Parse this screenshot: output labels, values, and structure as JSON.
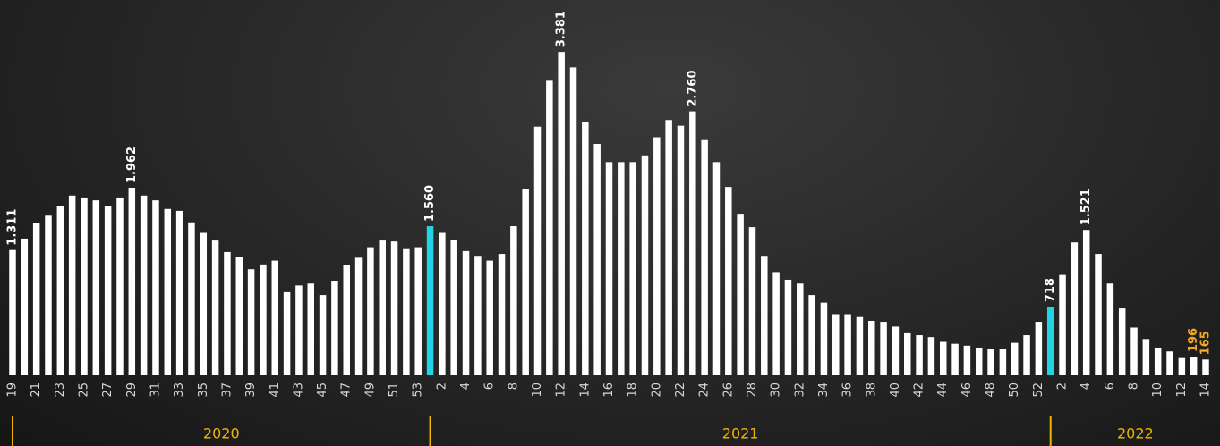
{
  "chart_data": {
    "type": "bar",
    "ylim": [
      0,
      3700
    ],
    "groups": [
      {
        "label": "2020",
        "categories": [
          "19",
          null,
          "21",
          null,
          "23",
          null,
          "25",
          null,
          "27",
          null,
          "29",
          null,
          "31",
          null,
          "33",
          null,
          "35",
          null,
          "37",
          null,
          "39",
          null,
          "41",
          null,
          "43",
          null,
          "45",
          null,
          "47",
          null,
          "49",
          null,
          "51",
          null,
          "53"
        ],
        "values": [
          1311,
          1430,
          1590,
          1670,
          1770,
          1880,
          1860,
          1830,
          1770,
          1860,
          1962,
          1880,
          1830,
          1740,
          1720,
          1600,
          1490,
          1410,
          1290,
          1240,
          1110,
          1160,
          1200,
          870,
          940,
          960,
          840,
          990,
          1150,
          1230,
          1340,
          1410,
          1400,
          1320,
          1340
        ],
        "value_labels": [
          "1.311",
          null,
          null,
          null,
          null,
          null,
          null,
          null,
          null,
          null,
          "1.962",
          null,
          null,
          null,
          null,
          null,
          null,
          null,
          null,
          null,
          null,
          null,
          null,
          null,
          null,
          null,
          null,
          null,
          null,
          null,
          null,
          null,
          null,
          null,
          null
        ],
        "colors": [
          "#ffffff",
          "#ffffff",
          "#ffffff",
          "#ffffff",
          "#ffffff",
          "#ffffff",
          "#ffffff",
          "#ffffff",
          "#ffffff",
          "#ffffff",
          "#ffffff",
          "#ffffff",
          "#ffffff",
          "#ffffff",
          "#ffffff",
          "#ffffff",
          "#ffffff",
          "#ffffff",
          "#ffffff",
          "#ffffff",
          "#ffffff",
          "#ffffff",
          "#ffffff",
          "#ffffff",
          "#ffffff",
          "#ffffff",
          "#ffffff",
          "#ffffff",
          "#ffffff",
          "#ffffff",
          "#ffffff",
          "#ffffff",
          "#ffffff",
          "#ffffff",
          "#ffffff"
        ],
        "value_label_colors": [
          "#ffffff",
          null,
          null,
          null,
          null,
          null,
          null,
          null,
          null,
          null,
          "#ffffff",
          null,
          null,
          null,
          null,
          null,
          null,
          null,
          null,
          null,
          null,
          null,
          null,
          null,
          null,
          null,
          null,
          null,
          null,
          null,
          null,
          null,
          null,
          null,
          null
        ]
      },
      {
        "label": "2021",
        "categories": [
          null,
          "2",
          null,
          "4",
          null,
          "6",
          null,
          "8",
          null,
          "10",
          null,
          "12",
          null,
          "14",
          null,
          "16",
          null,
          "18",
          null,
          "20",
          null,
          "22",
          null,
          "24",
          null,
          "26",
          null,
          "28",
          null,
          "30",
          null,
          "32",
          null,
          "34",
          null,
          "36",
          null,
          "38",
          null,
          "40",
          null,
          "42",
          null,
          "44",
          null,
          "46",
          null,
          "48",
          null,
          "50",
          null,
          "52"
        ],
        "values": [
          1560,
          1490,
          1420,
          1300,
          1250,
          1200,
          1270,
          1560,
          1950,
          2600,
          3080,
          3381,
          3220,
          2650,
          2420,
          2230,
          2230,
          2230,
          2300,
          2490,
          2670,
          2610,
          2760,
          2460,
          2230,
          1970,
          1690,
          1550,
          1250,
          1080,
          1000,
          960,
          840,
          760,
          640,
          640,
          610,
          570,
          560,
          510,
          440,
          420,
          400,
          350,
          330,
          310,
          290,
          280,
          280,
          340,
          420,
          560
        ],
        "value_labels": [
          "1.560",
          null,
          null,
          null,
          null,
          null,
          null,
          null,
          null,
          null,
          null,
          "3.381",
          null,
          null,
          null,
          null,
          null,
          null,
          null,
          null,
          null,
          null,
          "2.760",
          null,
          null,
          null,
          null,
          null,
          null,
          null,
          null,
          null,
          null,
          null,
          null,
          null,
          null,
          null,
          null,
          null,
          null,
          null,
          null,
          null,
          null,
          null,
          null,
          null,
          null,
          null,
          null,
          null
        ],
        "colors": [
          "#22d3e6",
          "#ffffff",
          "#ffffff",
          "#ffffff",
          "#ffffff",
          "#ffffff",
          "#ffffff",
          "#ffffff",
          "#ffffff",
          "#ffffff",
          "#ffffff",
          "#ffffff",
          "#ffffff",
          "#ffffff",
          "#ffffff",
          "#ffffff",
          "#ffffff",
          "#ffffff",
          "#ffffff",
          "#ffffff",
          "#ffffff",
          "#ffffff",
          "#ffffff",
          "#ffffff",
          "#ffffff",
          "#ffffff",
          "#ffffff",
          "#ffffff",
          "#ffffff",
          "#ffffff",
          "#ffffff",
          "#ffffff",
          "#ffffff",
          "#ffffff",
          "#ffffff",
          "#ffffff",
          "#ffffff",
          "#ffffff",
          "#ffffff",
          "#ffffff",
          "#ffffff",
          "#ffffff",
          "#ffffff",
          "#ffffff",
          "#ffffff",
          "#ffffff",
          "#ffffff",
          "#ffffff",
          "#ffffff",
          "#ffffff",
          "#ffffff",
          "#ffffff"
        ],
        "value_label_colors": [
          "#ffffff",
          null,
          null,
          null,
          null,
          null,
          null,
          null,
          null,
          null,
          null,
          "#ffffff",
          null,
          null,
          null,
          null,
          null,
          null,
          null,
          null,
          null,
          null,
          "#ffffff",
          null,
          null,
          null,
          null,
          null,
          null,
          null,
          null,
          null,
          null,
          null,
          null,
          null,
          null,
          null,
          null,
          null,
          null,
          null,
          null,
          null,
          null,
          null,
          null,
          null,
          null,
          null,
          null,
          null
        ]
      },
      {
        "label": "2022",
        "categories": [
          null,
          "2",
          null,
          "4",
          null,
          "6",
          null,
          "8",
          null,
          "10",
          null,
          "12",
          null,
          "14"
        ],
        "values": [
          718,
          1050,
          1390,
          1521,
          1270,
          960,
          700,
          500,
          380,
          290,
          250,
          190,
          196,
          165
        ],
        "value_labels": [
          "718",
          null,
          null,
          "1.521",
          null,
          null,
          null,
          null,
          null,
          null,
          null,
          null,
          "196",
          "165"
        ],
        "colors": [
          "#22d3e6",
          "#ffffff",
          "#ffffff",
          "#ffffff",
          "#ffffff",
          "#ffffff",
          "#ffffff",
          "#ffffff",
          "#ffffff",
          "#ffffff",
          "#ffffff",
          "#ffffff",
          "#ffffff",
          "#ffffff"
        ],
        "value_label_colors": [
          "#ffffff",
          null,
          null,
          "#ffffff",
          null,
          null,
          null,
          null,
          null,
          null,
          null,
          null,
          "#f0a81e",
          "#f0a81e"
        ]
      }
    ]
  }
}
